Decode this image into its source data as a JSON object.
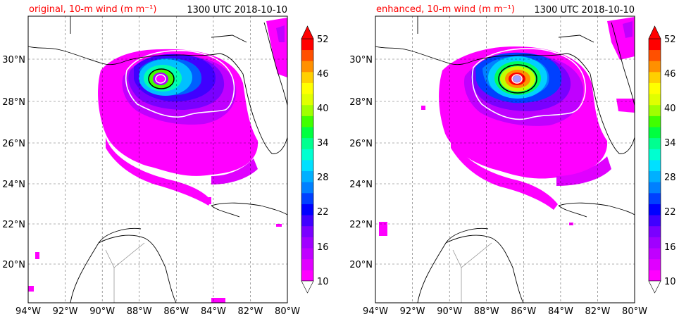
{
  "chart_data": [
    {
      "type": "heatmap",
      "title_left": "original, 10-m wind (m m⁻¹)",
      "title_right": "1300 UTC 2018-10-10",
      "x_ticks": [
        "94°W",
        "92°W",
        "90°W",
        "88°W",
        "86°W",
        "84°W",
        "82°W",
        "80°W"
      ],
      "y_ticks": [
        "30°N",
        "28°N",
        "26°N",
        "24°N",
        "22°N",
        "20°N"
      ],
      "xlim": [
        -94,
        -80
      ],
      "ylim": [
        18.2,
        32.2
      ],
      "grid": true,
      "storm_center": {
        "lon": -86.8,
        "lat": 29.1
      },
      "max_wind_level": 40
    },
    {
      "type": "heatmap",
      "title_left": "enhanced, 10-m wind (m m⁻¹)",
      "title_right": "1300 UTC 2018-10-10",
      "x_ticks": [
        "94°W",
        "92°W",
        "90°W",
        "88°W",
        "86°W",
        "84°W",
        "82°W",
        "80°W"
      ],
      "y_ticks": [
        "30°N",
        "28°N",
        "26°N",
        "24°N",
        "22°N",
        "20°N"
      ],
      "xlim": [
        -94,
        -80
      ],
      "ylim": [
        18.2,
        32.2
      ],
      "grid": true,
      "storm_center": {
        "lon": -86.1,
        "lat": 29.1
      },
      "max_wind_level": 52
    }
  ],
  "colorbar": {
    "ticks": [
      "52",
      "46",
      "40",
      "34",
      "28",
      "22",
      "16",
      "10"
    ],
    "levels": [
      10,
      12,
      14,
      16,
      18,
      20,
      22,
      24,
      26,
      28,
      30,
      32,
      34,
      36,
      38,
      40,
      42,
      44,
      46,
      48,
      50,
      52
    ],
    "colors": [
      "#ff00ff",
      "#e000ff",
      "#c000ff",
      "#a000ff",
      "#7a00ff",
      "#4000ff",
      "#0000ff",
      "#0040ff",
      "#0080ff",
      "#00b0ff",
      "#00e0ff",
      "#00ffd0",
      "#00ff90",
      "#00ff40",
      "#40ff00",
      "#a0ff00",
      "#e0ff00",
      "#ffff00",
      "#ffd000",
      "#ff9000",
      "#ff5000",
      "#ff0000"
    ]
  }
}
